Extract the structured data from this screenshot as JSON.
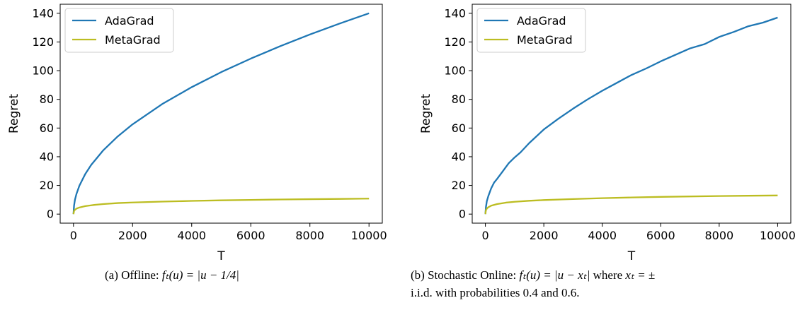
{
  "chart_data": [
    {
      "type": "line",
      "xlabel": "T",
      "ylabel": "Regret",
      "xlim": [
        0,
        10000
      ],
      "ylim": [
        0,
        140
      ],
      "xticks": [
        0,
        2000,
        4000,
        6000,
        8000,
        10000
      ],
      "yticks": [
        0,
        20,
        40,
        60,
        80,
        100,
        120,
        140
      ],
      "legend": "top-left",
      "grid": false,
      "series": [
        {
          "name": "AdaGrad",
          "color": "#1f77b4",
          "x": [
            0,
            20,
            50,
            100,
            200,
            400,
            600,
            1000,
            1500,
            2000,
            3000,
            4000,
            5000,
            6000,
            7000,
            8000,
            9000,
            10000
          ],
          "y": [
            0,
            6,
            10,
            14,
            19.8,
            28,
            34.3,
            44.3,
            54.2,
            62.6,
            76.7,
            88.5,
            99,
            108.4,
            117.1,
            125.2,
            132.8,
            140
          ]
        },
        {
          "name": "MetaGrad",
          "color": "#bcbd22",
          "x": [
            0,
            20,
            50,
            100,
            200,
            400,
            700,
            1000,
            1500,
            2000,
            3000,
            4000,
            5000,
            6000,
            7000,
            8000,
            9000,
            10000
          ],
          "y": [
            0,
            2.2,
            3,
            3.8,
            4.6,
            5.6,
            6.4,
            7,
            7.7,
            8.1,
            8.7,
            9.2,
            9.6,
            9.9,
            10.2,
            10.4,
            10.6,
            10.8
          ]
        }
      ]
    },
    {
      "type": "line",
      "xlabel": "T",
      "ylabel": "Regret",
      "xlim": [
        0,
        10000
      ],
      "ylim": [
        0,
        140
      ],
      "xticks": [
        0,
        2000,
        4000,
        6000,
        8000,
        10000
      ],
      "yticks": [
        0,
        20,
        40,
        60,
        80,
        100,
        120,
        140
      ],
      "legend": "top-left",
      "grid": false,
      "series": [
        {
          "name": "AdaGrad",
          "color": "#1f77b4",
          "x": [
            0,
            20,
            50,
            100,
            200,
            300,
            400,
            600,
            800,
            1000,
            1200,
            1500,
            2000,
            2500,
            3000,
            3500,
            4000,
            4500,
            5000,
            5500,
            6000,
            6500,
            7000,
            7500,
            8000,
            8500,
            9000,
            9500,
            10000
          ],
          "y": [
            0,
            5,
            9,
            12.5,
            18,
            22,
            24.5,
            30,
            35.5,
            39.5,
            43,
            49.5,
            59,
            66.5,
            73.5,
            80,
            86,
            91.5,
            97,
            101.5,
            106.5,
            111,
            115.5,
            118.5,
            123.5,
            127,
            131,
            133.5,
            137
          ]
        },
        {
          "name": "MetaGrad",
          "color": "#bcbd22",
          "x": [
            0,
            20,
            50,
            100,
            200,
            400,
            700,
            1000,
            1500,
            2000,
            3000,
            4000,
            5000,
            6000,
            7000,
            8000,
            9000,
            10000
          ],
          "y": [
            0,
            2.8,
            3.8,
            4.8,
            5.9,
            7,
            8,
            8.6,
            9.3,
            9.8,
            10.5,
            11.1,
            11.6,
            12,
            12.3,
            12.6,
            12.8,
            13
          ]
        }
      ]
    }
  ],
  "captions": {
    "a": {
      "prefix": "(a)  Offline:  ",
      "formula": "fₜ(u) = |u − 1/4|"
    },
    "b": {
      "line1_prefix": "(b)  Stochastic Online:  ",
      "line1_formula": "fₜ(u)  =  |u − xₜ|",
      "line1_where": "  where  ",
      "line1_formula2": "xₜ  =  ±",
      "line2": "i.i.d. with probabilities 0.4 and 0.6."
    }
  }
}
